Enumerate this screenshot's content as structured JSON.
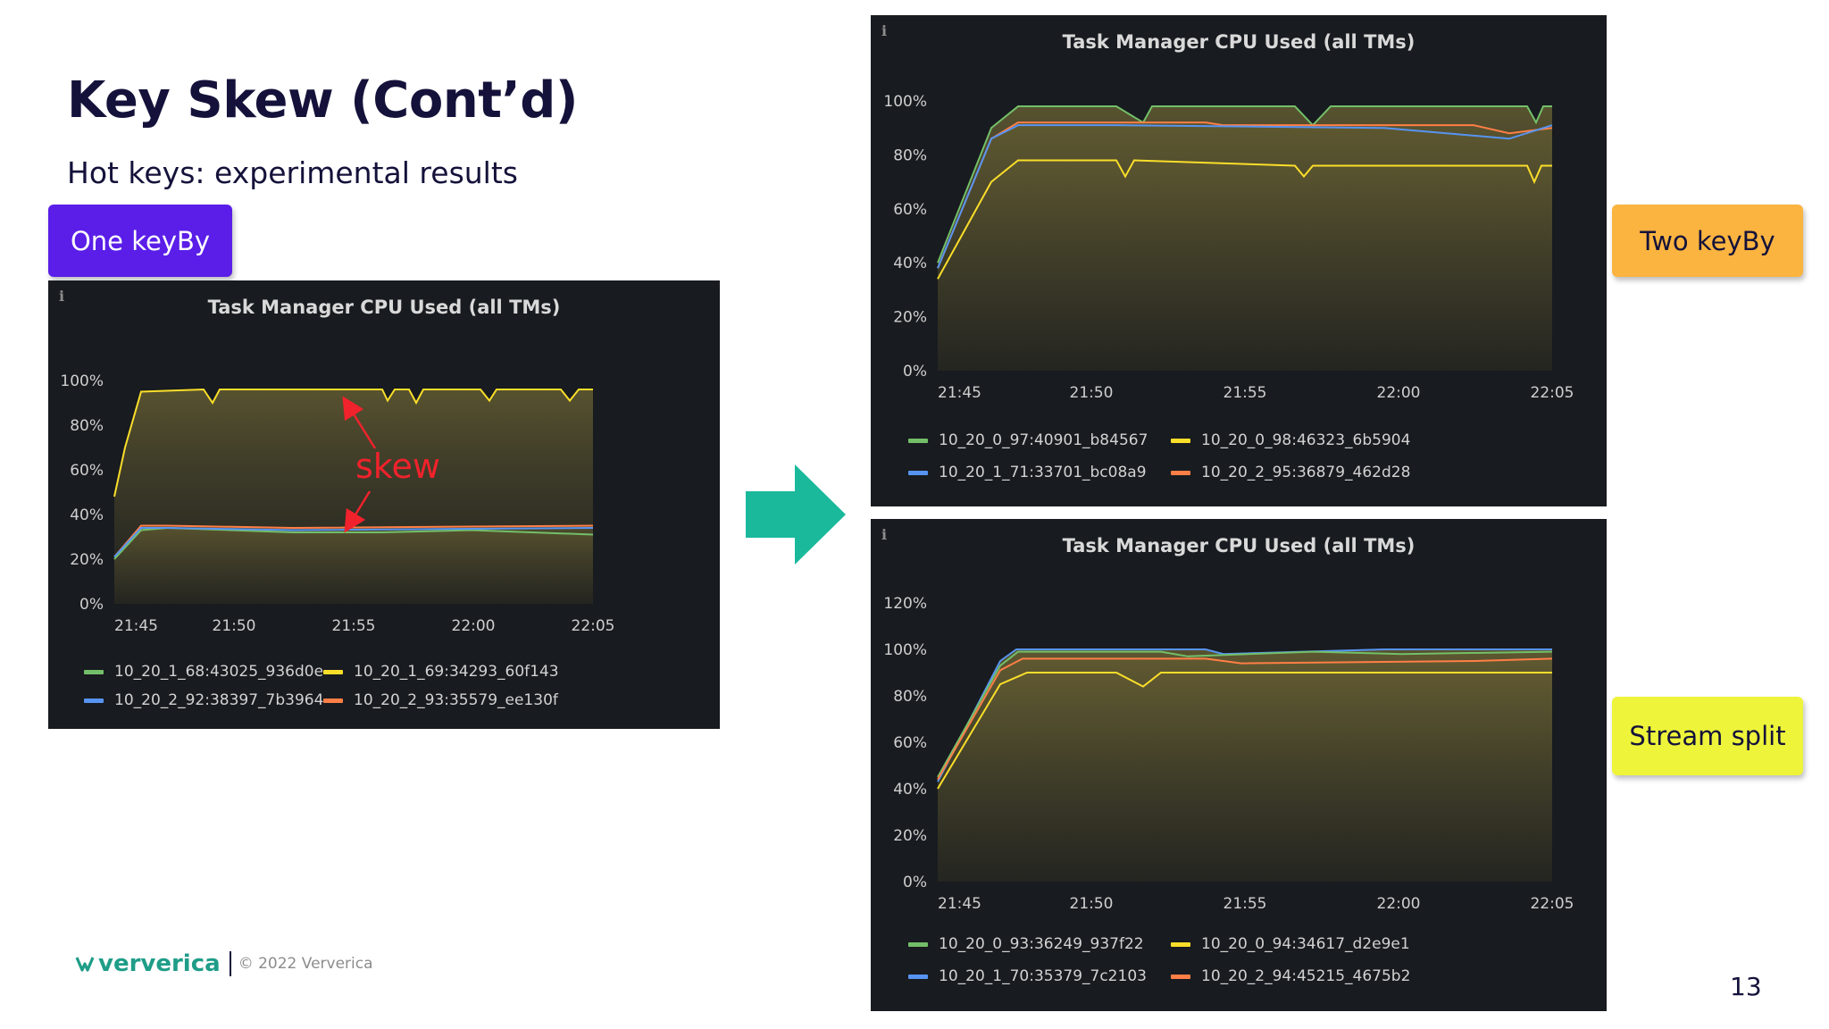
{
  "slide": {
    "title": "Key Skew (Cont’d)",
    "subtitle": "Hot keys: experimental results",
    "page_number": "13"
  },
  "tags": {
    "one": "One keyBy",
    "two": "Two  keyBy",
    "split": "Stream split"
  },
  "annotation": {
    "skew": "skew"
  },
  "footer": {
    "brand": "ververica",
    "copyright": "© 2022 Ververica"
  },
  "colors": {
    "green": "#73bf69",
    "yellow": "#fade2a",
    "blue": "#5794f2",
    "orange": "#ff7f46",
    "panel_bg": "#181b1f",
    "accent_purple": "#5a1ee8",
    "accent_orange": "#fbb440",
    "accent_yellow": "#eef43a",
    "arrow": "#1ab99b"
  },
  "panels": [
    {
      "title": "Task Manager CPU Used (all TMs)",
      "y_ticks": [
        "100%",
        "80%",
        "60%",
        "40%",
        "20%",
        "0%"
      ],
      "x_ticks": [
        "21:45",
        "21:50",
        "21:55",
        "22:00",
        "22:05"
      ],
      "legend": [
        {
          "label": "10_20_1_68:43025_936d0e",
          "color": "green"
        },
        {
          "label": "10_20_1_69:34293_60f143",
          "color": "yellow"
        },
        {
          "label": "10_20_2_92:38397_7b3964",
          "color": "blue"
        },
        {
          "label": "10_20_2_93:35579_ee130f",
          "color": "orange"
        }
      ]
    },
    {
      "title": "Task Manager CPU Used (all TMs)",
      "y_ticks": [
        "100%",
        "80%",
        "60%",
        "40%",
        "20%",
        "0%"
      ],
      "x_ticks": [
        "21:45",
        "21:50",
        "21:55",
        "22:00",
        "22:05"
      ],
      "legend": [
        {
          "label": "10_20_0_97:40901_b84567",
          "color": "green"
        },
        {
          "label": "10_20_0_98:46323_6b5904",
          "color": "yellow"
        },
        {
          "label": "10_20_1_71:33701_bc08a9",
          "color": "blue"
        },
        {
          "label": "10_20_2_95:36879_462d28",
          "color": "orange"
        }
      ]
    },
    {
      "title": "Task Manager CPU Used (all TMs)",
      "y_ticks": [
        "120%",
        "100%",
        "80%",
        "60%",
        "40%",
        "20%",
        "0%"
      ],
      "x_ticks": [
        "21:45",
        "21:50",
        "21:55",
        "22:00",
        "22:05"
      ],
      "legend": [
        {
          "label": "10_20_0_93:36249_937f22",
          "color": "green"
        },
        {
          "label": "10_20_0_94:34617_d2e9e1",
          "color": "yellow"
        },
        {
          "label": "10_20_1_70:35379_7c2103",
          "color": "blue"
        },
        {
          "label": "10_20_2_94:45215_4675b2",
          "color": "orange"
        }
      ]
    }
  ]
}
